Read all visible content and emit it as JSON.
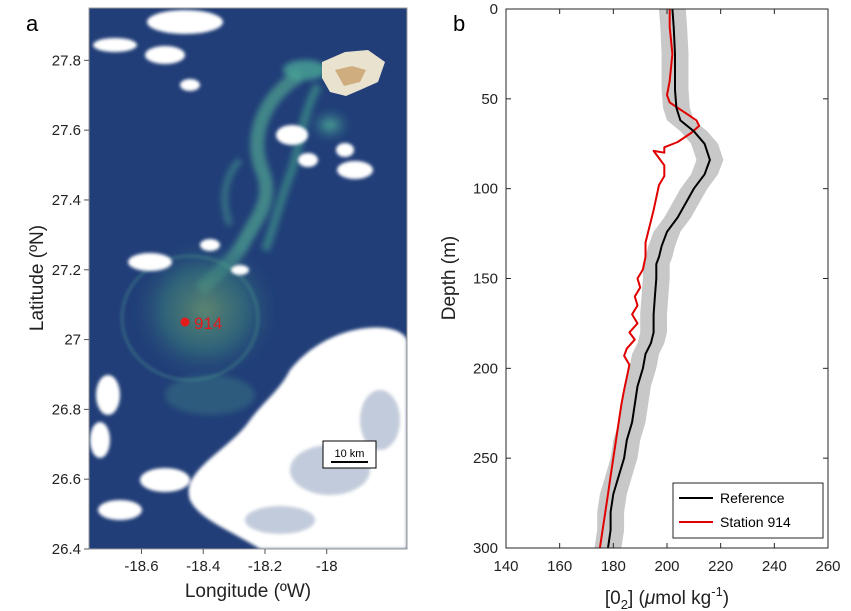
{
  "chart_data": [
    {
      "type": "image",
      "panel_label": "a",
      "xlabel": "Longitude (ºW)",
      "ylabel": "Latitude (ºN)",
      "xticks": [
        -18.6,
        -18.4,
        -18.2,
        -18
      ],
      "yticks": [
        27.8,
        27.6,
        27.4,
        27.2,
        27,
        26.8,
        26.6,
        26.4
      ],
      "xlim": [
        -18.77,
        -17.74
      ],
      "ylim": [
        26.4,
        27.95
      ],
      "station": {
        "label": "914",
        "lon": -18.49,
        "lat": 27.06
      },
      "scale_bar": "10 km"
    },
    {
      "type": "line",
      "panel_label": "b",
      "xlabel": "[0₂] (μmol kg⁻¹)",
      "ylabel": "Depth (m)",
      "xlim": [
        140,
        260
      ],
      "ylim": [
        0,
        300
      ],
      "xticks": [
        140,
        160,
        180,
        200,
        220,
        240,
        260
      ],
      "yticks": [
        0,
        50,
        100,
        150,
        200,
        250,
        300
      ],
      "y_reversed": true,
      "legend": "bottom-right",
      "series": [
        {
          "name": "Reference",
          "color": "#000000",
          "band_color": "#c8c8c8",
          "band_halfwidth": 5,
          "points": [
            [
              202,
              0
            ],
            [
              202.5,
              10
            ],
            [
              203,
              25
            ],
            [
              203,
              45
            ],
            [
              203.5,
              55
            ],
            [
              205,
              62
            ],
            [
              210,
              68
            ],
            [
              214,
              75
            ],
            [
              216,
              84
            ],
            [
              214,
              92
            ],
            [
              210,
              100
            ],
            [
              207,
              108
            ],
            [
              204,
              116
            ],
            [
              200,
              124
            ],
            [
              198,
              132
            ],
            [
              197,
              138
            ],
            [
              196,
              142
            ],
            [
              196,
              150
            ],
            [
              195.5,
              160
            ],
            [
              195,
              170
            ],
            [
              195,
              180
            ],
            [
              194,
              186
            ],
            [
              192,
              192
            ],
            [
              191,
              200
            ],
            [
              189,
              210
            ],
            [
              188,
              220
            ],
            [
              187,
              230
            ],
            [
              185,
              240
            ],
            [
              184,
              250
            ],
            [
              182,
              260
            ],
            [
              180,
              270
            ],
            [
              179,
              280
            ],
            [
              179,
              290
            ],
            [
              178,
              300
            ]
          ]
        },
        {
          "name": "Station 914",
          "color": "#e00000",
          "points": [
            [
              201,
              0
            ],
            [
              201,
              10
            ],
            [
              202,
              25
            ],
            [
              201,
              40
            ],
            [
              200,
              48
            ],
            [
              201,
              52
            ],
            [
              204,
              55
            ],
            [
              207,
              58
            ],
            [
              211,
              62
            ],
            [
              212,
              65
            ],
            [
              209,
              69
            ],
            [
              204,
              74
            ],
            [
              199,
              77
            ],
            [
              199,
              80
            ],
            [
              195,
              79
            ],
            [
              197,
              83
            ],
            [
              199,
              87
            ],
            [
              199,
              93
            ],
            [
              197,
              98
            ],
            [
              196,
              105
            ],
            [
              195,
              112
            ],
            [
              194,
              118
            ],
            [
              193,
              124
            ],
            [
              192,
              130
            ],
            [
              192,
              138
            ],
            [
              191,
              145
            ],
            [
              189,
              150
            ],
            [
              190,
              155
            ],
            [
              188,
              160
            ],
            [
              189,
              165
            ],
            [
              187,
              170
            ],
            [
              189,
              175
            ],
            [
              186,
              180
            ],
            [
              188,
              184
            ],
            [
              185,
              189
            ],
            [
              184,
              193
            ],
            [
              186,
              198
            ],
            [
              185,
              205
            ],
            [
              184,
              212
            ],
            [
              183,
              220
            ],
            [
              182,
              230
            ],
            [
              181,
              240
            ],
            [
              180,
              250
            ],
            [
              179,
              260
            ],
            [
              178,
              270
            ],
            [
              177,
              280
            ],
            [
              176,
              290
            ],
            [
              175,
              300
            ]
          ]
        }
      ]
    }
  ]
}
